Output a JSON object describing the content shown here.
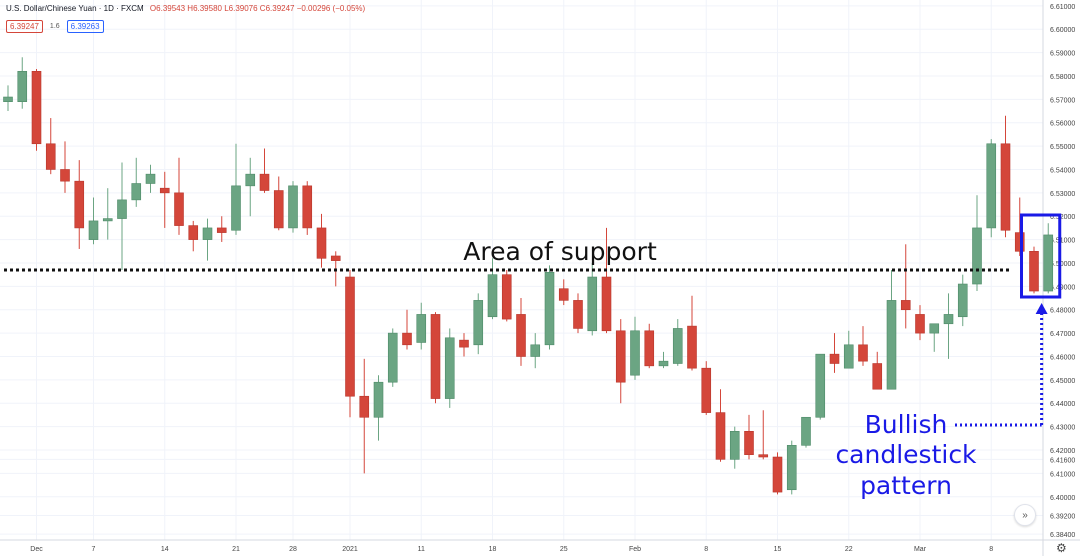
{
  "header": {
    "symbol": "U.S. Dollar/Chinese Yuan · 1D · FXCM",
    "ohlc": "O6.39543 H6.39580 L6.39076 C6.39247 −0.00296 (−0.05%)"
  },
  "badges": {
    "sell": "6.39247",
    "spread": "1.6",
    "buy": "6.39263"
  },
  "annotations": {
    "support": "Area of support",
    "pattern": [
      "Bullish",
      "candlestick",
      "pattern"
    ]
  },
  "colors": {
    "up": "#6ba583",
    "down": "#d4463a",
    "annotation": "#1a1ae6",
    "support_line": "#111111",
    "grid": "#f0f3fa",
    "axis_text": "#444444"
  },
  "icons": {
    "scroll": "double-chevron-right-icon",
    "settings": "gear-icon"
  },
  "chart_data": {
    "type": "candlestick",
    "title": "U.S. Dollar/Chinese Yuan · 1D · FXCM",
    "ylim": [
      6.384,
      6.61
    ],
    "y_ticks": [
      "6.61000",
      "6.60000",
      "6.59000",
      "6.58000",
      "6.57000",
      "6.56000",
      "6.55000",
      "6.54000",
      "6.53000",
      "6.52000",
      "6.51000",
      "6.50000",
      "6.49000",
      "6.48000",
      "6.47000",
      "6.46000",
      "6.45000",
      "6.44000",
      "6.43000",
      "6.42000",
      "6.41600",
      "6.41000",
      "6.40000",
      "6.39200",
      "6.38400"
    ],
    "x_ticks": [
      {
        "label": "Dec",
        "index": 2
      },
      {
        "label": "7",
        "index": 6
      },
      {
        "label": "14",
        "index": 11
      },
      {
        "label": "21",
        "index": 16
      },
      {
        "label": "28",
        "index": 20
      },
      {
        "label": "2021",
        "index": 24
      },
      {
        "label": "11",
        "index": 29
      },
      {
        "label": "18",
        "index": 34
      },
      {
        "label": "25",
        "index": 39
      },
      {
        "label": "Feb",
        "index": 44
      },
      {
        "label": "8",
        "index": 49
      },
      {
        "label": "15",
        "index": 54
      },
      {
        "label": "22",
        "index": 59
      },
      {
        "label": "Mar",
        "index": 64
      },
      {
        "label": "8",
        "index": 69
      }
    ],
    "support_level": 6.497,
    "candles": [
      {
        "o": 6.569,
        "h": 6.576,
        "l": 6.565,
        "c": 6.571
      },
      {
        "o": 6.569,
        "h": 6.588,
        "l": 6.566,
        "c": 6.582
      },
      {
        "o": 6.582,
        "h": 6.583,
        "l": 6.548,
        "c": 6.551
      },
      {
        "o": 6.551,
        "h": 6.562,
        "l": 6.538,
        "c": 6.54
      },
      {
        "o": 6.54,
        "h": 6.552,
        "l": 6.53,
        "c": 6.535
      },
      {
        "o": 6.535,
        "h": 6.544,
        "l": 6.506,
        "c": 6.515
      },
      {
        "o": 6.51,
        "h": 6.528,
        "l": 6.508,
        "c": 6.518
      },
      {
        "o": 6.518,
        "h": 6.532,
        "l": 6.51,
        "c": 6.519
      },
      {
        "o": 6.519,
        "h": 6.543,
        "l": 6.497,
        "c": 6.527
      },
      {
        "o": 6.527,
        "h": 6.545,
        "l": 6.524,
        "c": 6.534
      },
      {
        "o": 6.534,
        "h": 6.542,
        "l": 6.53,
        "c": 6.538
      },
      {
        "o": 6.532,
        "h": 6.539,
        "l": 6.515,
        "c": 6.53
      },
      {
        "o": 6.53,
        "h": 6.545,
        "l": 6.512,
        "c": 6.516
      },
      {
        "o": 6.516,
        "h": 6.518,
        "l": 6.505,
        "c": 6.51
      },
      {
        "o": 6.51,
        "h": 6.519,
        "l": 6.501,
        "c": 6.515
      },
      {
        "o": 6.515,
        "h": 6.52,
        "l": 6.509,
        "c": 6.513
      },
      {
        "o": 6.514,
        "h": 6.551,
        "l": 6.512,
        "c": 6.533
      },
      {
        "o": 6.533,
        "h": 6.545,
        "l": 6.52,
        "c": 6.538
      },
      {
        "o": 6.538,
        "h": 6.549,
        "l": 6.53,
        "c": 6.531
      },
      {
        "o": 6.531,
        "h": 6.537,
        "l": 6.514,
        "c": 6.515
      },
      {
        "o": 6.515,
        "h": 6.535,
        "l": 6.513,
        "c": 6.533
      },
      {
        "o": 6.533,
        "h": 6.535,
        "l": 6.512,
        "c": 6.515
      },
      {
        "o": 6.515,
        "h": 6.521,
        "l": 6.498,
        "c": 6.502
      },
      {
        "o": 6.503,
        "h": 6.505,
        "l": 6.49,
        "c": 6.501
      },
      {
        "o": 6.494,
        "h": 6.497,
        "l": 6.434,
        "c": 6.443
      },
      {
        "o": 6.443,
        "h": 6.459,
        "l": 6.41,
        "c": 6.434
      },
      {
        "o": 6.434,
        "h": 6.452,
        "l": 6.424,
        "c": 6.449
      },
      {
        "o": 6.449,
        "h": 6.472,
        "l": 6.447,
        "c": 6.47
      },
      {
        "o": 6.47,
        "h": 6.48,
        "l": 6.463,
        "c": 6.465
      },
      {
        "o": 6.466,
        "h": 6.483,
        "l": 6.463,
        "c": 6.478
      },
      {
        "o": 6.478,
        "h": 6.479,
        "l": 6.44,
        "c": 6.442
      },
      {
        "o": 6.442,
        "h": 6.472,
        "l": 6.438,
        "c": 6.468
      },
      {
        "o": 6.467,
        "h": 6.47,
        "l": 6.46,
        "c": 6.464
      },
      {
        "o": 6.465,
        "h": 6.487,
        "l": 6.461,
        "c": 6.484
      },
      {
        "o": 6.477,
        "h": 6.502,
        "l": 6.476,
        "c": 6.495
      },
      {
        "o": 6.495,
        "h": 6.497,
        "l": 6.475,
        "c": 6.476
      },
      {
        "o": 6.478,
        "h": 6.485,
        "l": 6.456,
        "c": 6.46
      },
      {
        "o": 6.46,
        "h": 6.47,
        "l": 6.455,
        "c": 6.465
      },
      {
        "o": 6.465,
        "h": 6.499,
        "l": 6.463,
        "c": 6.496
      },
      {
        "o": 6.489,
        "h": 6.493,
        "l": 6.482,
        "c": 6.484
      },
      {
        "o": 6.484,
        "h": 6.487,
        "l": 6.47,
        "c": 6.472
      },
      {
        "o": 6.471,
        "h": 6.5,
        "l": 6.469,
        "c": 6.494
      },
      {
        "o": 6.494,
        "h": 6.515,
        "l": 6.47,
        "c": 6.471
      },
      {
        "o": 6.471,
        "h": 6.476,
        "l": 6.44,
        "c": 6.449
      },
      {
        "o": 6.452,
        "h": 6.477,
        "l": 6.45,
        "c": 6.471
      },
      {
        "o": 6.471,
        "h": 6.474,
        "l": 6.455,
        "c": 6.456
      },
      {
        "o": 6.456,
        "h": 6.462,
        "l": 6.455,
        "c": 6.458
      },
      {
        "o": 6.457,
        "h": 6.476,
        "l": 6.456,
        "c": 6.472
      },
      {
        "o": 6.473,
        "h": 6.486,
        "l": 6.454,
        "c": 6.455
      },
      {
        "o": 6.455,
        "h": 6.458,
        "l": 6.435,
        "c": 6.436
      },
      {
        "o": 6.436,
        "h": 6.446,
        "l": 6.415,
        "c": 6.416
      },
      {
        "o": 6.416,
        "h": 6.43,
        "l": 6.412,
        "c": 6.428
      },
      {
        "o": 6.428,
        "h": 6.435,
        "l": 6.416,
        "c": 6.418
      },
      {
        "o": 6.418,
        "h": 6.437,
        "l": 6.416,
        "c": 6.417
      },
      {
        "o": 6.417,
        "h": 6.419,
        "l": 6.401,
        "c": 6.402
      },
      {
        "o": 6.403,
        "h": 6.424,
        "l": 6.401,
        "c": 6.422
      },
      {
        "o": 6.422,
        "h": 6.434,
        "l": 6.421,
        "c": 6.434
      },
      {
        "o": 6.434,
        "h": 6.461,
        "l": 6.433,
        "c": 6.461
      },
      {
        "o": 6.461,
        "h": 6.47,
        "l": 6.453,
        "c": 6.457
      },
      {
        "o": 6.455,
        "h": 6.471,
        "l": 6.455,
        "c": 6.465
      },
      {
        "o": 6.465,
        "h": 6.473,
        "l": 6.456,
        "c": 6.458
      },
      {
        "o": 6.457,
        "h": 6.462,
        "l": 6.446,
        "c": 6.446
      },
      {
        "o": 6.446,
        "h": 6.497,
        "l": 6.446,
        "c": 6.484
      },
      {
        "o": 6.484,
        "h": 6.508,
        "l": 6.472,
        "c": 6.48
      },
      {
        "o": 6.478,
        "h": 6.482,
        "l": 6.467,
        "c": 6.47
      },
      {
        "o": 6.47,
        "h": 6.474,
        "l": 6.462,
        "c": 6.474
      },
      {
        "o": 6.474,
        "h": 6.487,
        "l": 6.459,
        "c": 6.478
      },
      {
        "o": 6.477,
        "h": 6.495,
        "l": 6.473,
        "c": 6.491
      },
      {
        "o": 6.491,
        "h": 6.529,
        "l": 6.488,
        "c": 6.515
      },
      {
        "o": 6.515,
        "h": 6.553,
        "l": 6.511,
        "c": 6.551
      },
      {
        "o": 6.551,
        "h": 6.563,
        "l": 6.511,
        "c": 6.514
      },
      {
        "o": 6.513,
        "h": 6.528,
        "l": 6.503,
        "c": 6.505
      },
      {
        "o": 6.505,
        "h": 6.507,
        "l": 6.487,
        "c": 6.488
      },
      {
        "o": 6.488,
        "h": 6.517,
        "l": 6.487,
        "c": 6.512
      }
    ]
  }
}
